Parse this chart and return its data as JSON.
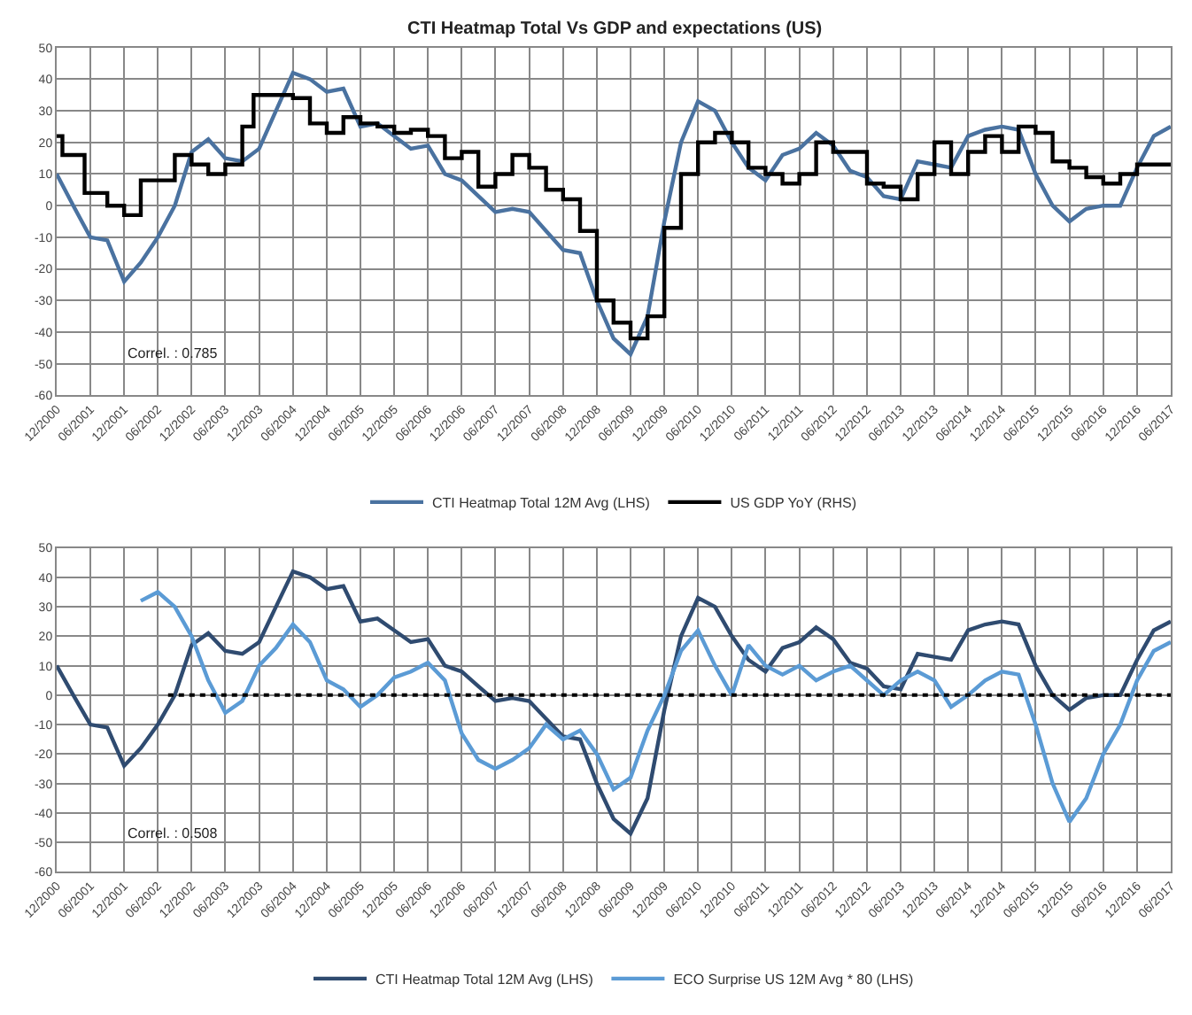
{
  "chart_data": [
    {
      "type": "line",
      "title": "CTI Heatmap Total Vs GDP and expectations (US)",
      "x": [
        "2000-12",
        "2001-03",
        "2001-06",
        "2001-09",
        "2001-12",
        "2002-03",
        "2002-06",
        "2002-09",
        "2002-12",
        "2003-03",
        "2003-06",
        "2003-09",
        "2003-12",
        "2004-03",
        "2004-06",
        "2004-09",
        "2004-12",
        "2005-03",
        "2005-06",
        "2005-09",
        "2005-12",
        "2006-03",
        "2006-06",
        "2006-09",
        "2006-12",
        "2007-03",
        "2007-06",
        "2007-09",
        "2007-12",
        "2008-03",
        "2008-06",
        "2008-09",
        "2008-12",
        "2009-03",
        "2009-06",
        "2009-09",
        "2009-12",
        "2010-03",
        "2010-06",
        "2010-09",
        "2010-12",
        "2011-03",
        "2011-06",
        "2011-09",
        "2011-12",
        "2012-03",
        "2012-06",
        "2012-09",
        "2012-12",
        "2013-03",
        "2013-06",
        "2013-09",
        "2013-12",
        "2014-03",
        "2014-06",
        "2014-09",
        "2014-12",
        "2015-03",
        "2015-06",
        "2015-09",
        "2015-12",
        "2016-03",
        "2016-06",
        "2016-09",
        "2016-12",
        "2017-03",
        "2017-06"
      ],
      "series": [
        {
          "name": "CTI Heatmap Total 12M Avg (LHS)",
          "color": "#4a72a0",
          "values": [
            10,
            0,
            -10,
            -11,
            -24,
            -18,
            -10,
            0,
            17,
            21,
            15,
            14,
            18,
            30,
            42,
            40,
            36,
            37,
            25,
            26,
            22,
            18,
            19,
            10,
            8,
            3,
            -2,
            -1,
            -2,
            -8,
            -14,
            -15,
            -30,
            -42,
            -47,
            -35,
            -5,
            20,
            33,
            30,
            20,
            12,
            8,
            16,
            18,
            23,
            19,
            11,
            9,
            3,
            2,
            14,
            13,
            12,
            22,
            24,
            25,
            24,
            10,
            0,
            -5,
            -1,
            0,
            0,
            12,
            22,
            25
          ]
        },
        {
          "name": "US GDP YoY (RHS)",
          "type": "step",
          "color": "#000000",
          "x": [
            "2000-12",
            "2001-01",
            "2001-05",
            "2001-09",
            "2001-12",
            "2002-03",
            "2002-09",
            "2002-12",
            "2003-03",
            "2003-06",
            "2003-09",
            "2003-11",
            "2004-06",
            "2004-09",
            "2004-12",
            "2005-03",
            "2005-06",
            "2005-09",
            "2005-12",
            "2006-03",
            "2006-06",
            "2006-09",
            "2006-12",
            "2007-03",
            "2007-06",
            "2007-09",
            "2007-12",
            "2008-03",
            "2008-06",
            "2008-09",
            "2008-12",
            "2009-03",
            "2009-06",
            "2009-09",
            "2009-12",
            "2010-03",
            "2010-06",
            "2010-09",
            "2010-12",
            "2011-03",
            "2011-06",
            "2011-09",
            "2011-12",
            "2012-03",
            "2012-06",
            "2012-09",
            "2012-12",
            "2013-03",
            "2013-06",
            "2013-09",
            "2013-12",
            "2014-03",
            "2014-06",
            "2014-09",
            "2014-12",
            "2015-03",
            "2015-06",
            "2015-09",
            "2015-12",
            "2016-03",
            "2016-06",
            "2016-09",
            "2016-12",
            "2017-06"
          ],
          "values": [
            22,
            16,
            4,
            0,
            -3,
            8,
            16,
            13,
            10,
            13,
            25,
            35,
            34,
            26,
            23,
            28,
            26,
            25,
            23,
            24,
            22,
            15,
            17,
            6,
            10,
            16,
            12,
            5,
            2,
            -8,
            -30,
            -37,
            -42,
            -35,
            -7,
            10,
            20,
            23,
            20,
            12,
            10,
            7,
            10,
            20,
            17,
            17,
            7,
            6,
            2,
            10,
            20,
            10,
            17,
            22,
            17,
            25,
            23,
            14,
            12,
            9,
            7,
            10,
            13,
            13
          ]
        }
      ],
      "xlim": [
        "2000-12",
        "2017-06"
      ],
      "xticks": [
        {
          "value": "2000-12",
          "label": "12/2000"
        },
        {
          "value": "2001-06",
          "label": "06/2001"
        },
        {
          "value": "2001-12",
          "label": "12/2001"
        },
        {
          "value": "2002-06",
          "label": "06/2002"
        },
        {
          "value": "2002-12",
          "label": "12/2002"
        },
        {
          "value": "2003-06",
          "label": "06/2003"
        },
        {
          "value": "2003-12",
          "label": "12/2003"
        },
        {
          "value": "2004-06",
          "label": "06/2004"
        },
        {
          "value": "2004-12",
          "label": "12/2004"
        },
        {
          "value": "2005-06",
          "label": "06/2005"
        },
        {
          "value": "2005-12",
          "label": "12/2005"
        },
        {
          "value": "2006-06",
          "label": "06/2006"
        },
        {
          "value": "2006-12",
          "label": "12/2006"
        },
        {
          "value": "2007-06",
          "label": "06/2007"
        },
        {
          "value": "2007-12",
          "label": "12/2007"
        },
        {
          "value": "2008-06",
          "label": "06/2008"
        },
        {
          "value": "2008-12",
          "label": "12/2008"
        },
        {
          "value": "2009-06",
          "label": "06/2009"
        },
        {
          "value": "2009-12",
          "label": "12/2009"
        },
        {
          "value": "2010-06",
          "label": "06/2010"
        },
        {
          "value": "2010-12",
          "label": "12/2010"
        },
        {
          "value": "2011-06",
          "label": "06/2011"
        },
        {
          "value": "2011-12",
          "label": "12/2011"
        },
        {
          "value": "2012-06",
          "label": "06/2012"
        },
        {
          "value": "2012-12",
          "label": "12/2012"
        },
        {
          "value": "2013-06",
          "label": "06/2013"
        },
        {
          "value": "2013-12",
          "label": "12/2013"
        },
        {
          "value": "2014-06",
          "label": "06/2014"
        },
        {
          "value": "2014-12",
          "label": "12/2014"
        },
        {
          "value": "2015-06",
          "label": "06/2015"
        },
        {
          "value": "2015-12",
          "label": "12/2015"
        },
        {
          "value": "2016-06",
          "label": "06/2016"
        },
        {
          "value": "2016-12",
          "label": "12/2016"
        },
        {
          "value": "2017-06",
          "label": "06/2017"
        }
      ],
      "ylim": [
        -60,
        50
      ],
      "yticks": [
        -60,
        -50,
        -40,
        -30,
        -20,
        -10,
        0,
        10,
        20,
        30,
        40,
        50
      ],
      "grid": true,
      "legend": "bottom",
      "annotations": [
        "Correl. : 0.785"
      ]
    },
    {
      "type": "line",
      "x": [
        "2000-12",
        "2001-03",
        "2001-06",
        "2001-09",
        "2001-12",
        "2002-03",
        "2002-06",
        "2002-09",
        "2002-12",
        "2003-03",
        "2003-06",
        "2003-09",
        "2003-12",
        "2004-03",
        "2004-06",
        "2004-09",
        "2004-12",
        "2005-03",
        "2005-06",
        "2005-09",
        "2005-12",
        "2006-03",
        "2006-06",
        "2006-09",
        "2006-12",
        "2007-03",
        "2007-06",
        "2007-09",
        "2007-12",
        "2008-03",
        "2008-06",
        "2008-09",
        "2008-12",
        "2009-03",
        "2009-06",
        "2009-09",
        "2009-12",
        "2010-03",
        "2010-06",
        "2010-09",
        "2010-12",
        "2011-03",
        "2011-06",
        "2011-09",
        "2011-12",
        "2012-03",
        "2012-06",
        "2012-09",
        "2012-12",
        "2013-03",
        "2013-06",
        "2013-09",
        "2013-12",
        "2014-03",
        "2014-06",
        "2014-09",
        "2014-12",
        "2015-03",
        "2015-06",
        "2015-09",
        "2015-12",
        "2016-03",
        "2016-06",
        "2016-09",
        "2016-12",
        "2017-03",
        "2017-06"
      ],
      "series": [
        {
          "name": "CTI Heatmap Total 12M Avg (LHS)",
          "color": "#2f4b70",
          "values": [
            10,
            0,
            -10,
            -11,
            -24,
            -18,
            -10,
            0,
            17,
            21,
            15,
            14,
            18,
            30,
            42,
            40,
            36,
            37,
            25,
            26,
            22,
            18,
            19,
            10,
            8,
            3,
            -2,
            -1,
            -2,
            -8,
            -14,
            -15,
            -30,
            -42,
            -47,
            -35,
            -5,
            20,
            33,
            30,
            20,
            12,
            8,
            16,
            18,
            23,
            19,
            11,
            9,
            3,
            2,
            14,
            13,
            12,
            22,
            24,
            25,
            24,
            10,
            0,
            -5,
            -1,
            0,
            0,
            12,
            22,
            25
          ]
        },
        {
          "name": "ECO Surprise US 12M Avg * 80 (LHS)",
          "color": "#5b9bd5",
          "values": [
            null,
            null,
            null,
            null,
            null,
            32,
            35,
            30,
            20,
            5,
            -6,
            -2,
            10,
            16,
            24,
            18,
            5,
            2,
            -4,
            0,
            6,
            8,
            11,
            5,
            -13,
            -22,
            -25,
            -22,
            -18,
            -10,
            -15,
            -12,
            -20,
            -32,
            -28,
            -12,
            0,
            15,
            22,
            10,
            0,
            17,
            10,
            7,
            10,
            5,
            8,
            10,
            5,
            0,
            5,
            8,
            5,
            -4,
            0,
            5,
            8,
            7,
            -10,
            -30,
            -43,
            -35,
            -20,
            -10,
            5,
            15,
            18
          ]
        }
      ],
      "xlim": [
        "2000-12",
        "2017-06"
      ],
      "xticks": [
        {
          "value": "2000-12",
          "label": "12/2000"
        },
        {
          "value": "2001-06",
          "label": "06/2001"
        },
        {
          "value": "2001-12",
          "label": "12/2001"
        },
        {
          "value": "2002-06",
          "label": "06/2002"
        },
        {
          "value": "2002-12",
          "label": "12/2002"
        },
        {
          "value": "2003-06",
          "label": "06/2003"
        },
        {
          "value": "2003-12",
          "label": "12/2003"
        },
        {
          "value": "2004-06",
          "label": "06/2004"
        },
        {
          "value": "2004-12",
          "label": "12/2004"
        },
        {
          "value": "2005-06",
          "label": "06/2005"
        },
        {
          "value": "2005-12",
          "label": "12/2005"
        },
        {
          "value": "2006-06",
          "label": "06/2006"
        },
        {
          "value": "2006-12",
          "label": "12/2006"
        },
        {
          "value": "2007-06",
          "label": "06/2007"
        },
        {
          "value": "2007-12",
          "label": "12/2007"
        },
        {
          "value": "2008-06",
          "label": "06/2008"
        },
        {
          "value": "2008-12",
          "label": "12/2008"
        },
        {
          "value": "2009-06",
          "label": "06/2009"
        },
        {
          "value": "2009-12",
          "label": "12/2009"
        },
        {
          "value": "2010-06",
          "label": "06/2010"
        },
        {
          "value": "2010-12",
          "label": "12/2010"
        },
        {
          "value": "2011-06",
          "label": "06/2011"
        },
        {
          "value": "2011-12",
          "label": "12/2011"
        },
        {
          "value": "2012-06",
          "label": "06/2012"
        },
        {
          "value": "2012-12",
          "label": "12/2012"
        },
        {
          "value": "2013-06",
          "label": "06/2013"
        },
        {
          "value": "2013-12",
          "label": "12/2013"
        },
        {
          "value": "2014-06",
          "label": "06/2014"
        },
        {
          "value": "2014-12",
          "label": "12/2014"
        },
        {
          "value": "2015-06",
          "label": "06/2015"
        },
        {
          "value": "2015-12",
          "label": "12/2015"
        },
        {
          "value": "2016-06",
          "label": "06/2016"
        },
        {
          "value": "2016-12",
          "label": "12/2016"
        },
        {
          "value": "2017-06",
          "label": "06/2017"
        }
      ],
      "ylim": [
        -60,
        50
      ],
      "yticks": [
        -60,
        -50,
        -40,
        -30,
        -20,
        -10,
        0,
        10,
        20,
        30,
        40,
        50
      ],
      "grid": true,
      "legend": "bottom",
      "ref_lines": [
        {
          "axis": "y",
          "value": 0,
          "color": "#000000",
          "line_style": "dotted"
        }
      ],
      "annotations": [
        "Correl. : 0.508"
      ]
    }
  ]
}
